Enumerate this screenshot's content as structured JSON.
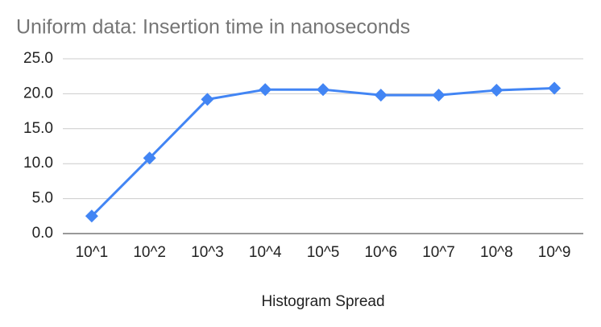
{
  "chart_data": {
    "type": "line",
    "title": "Uniform data: Insertion time in nanoseconds",
    "x_label": "Histogram Spread",
    "categories": [
      "10^1",
      "10^2",
      "10^3",
      "10^4",
      "10^5",
      "10^6",
      "10^7",
      "10^8",
      "10^9"
    ],
    "series": [
      {
        "color": "#4285f4",
        "values": [
          2.5,
          10.8,
          19.2,
          20.6,
          20.6,
          19.8,
          19.8,
          20.5,
          20.8
        ]
      }
    ],
    "ylim": [
      0,
      25
    ],
    "yticks": [
      {
        "value": 0,
        "label": "0.0"
      },
      {
        "value": 5,
        "label": "5.0"
      },
      {
        "value": 10,
        "label": "10.0"
      },
      {
        "value": 15,
        "label": "15.0"
      },
      {
        "value": 20,
        "label": "20.0"
      },
      {
        "value": 25,
        "label": "25.0"
      }
    ],
    "grid": true
  }
}
